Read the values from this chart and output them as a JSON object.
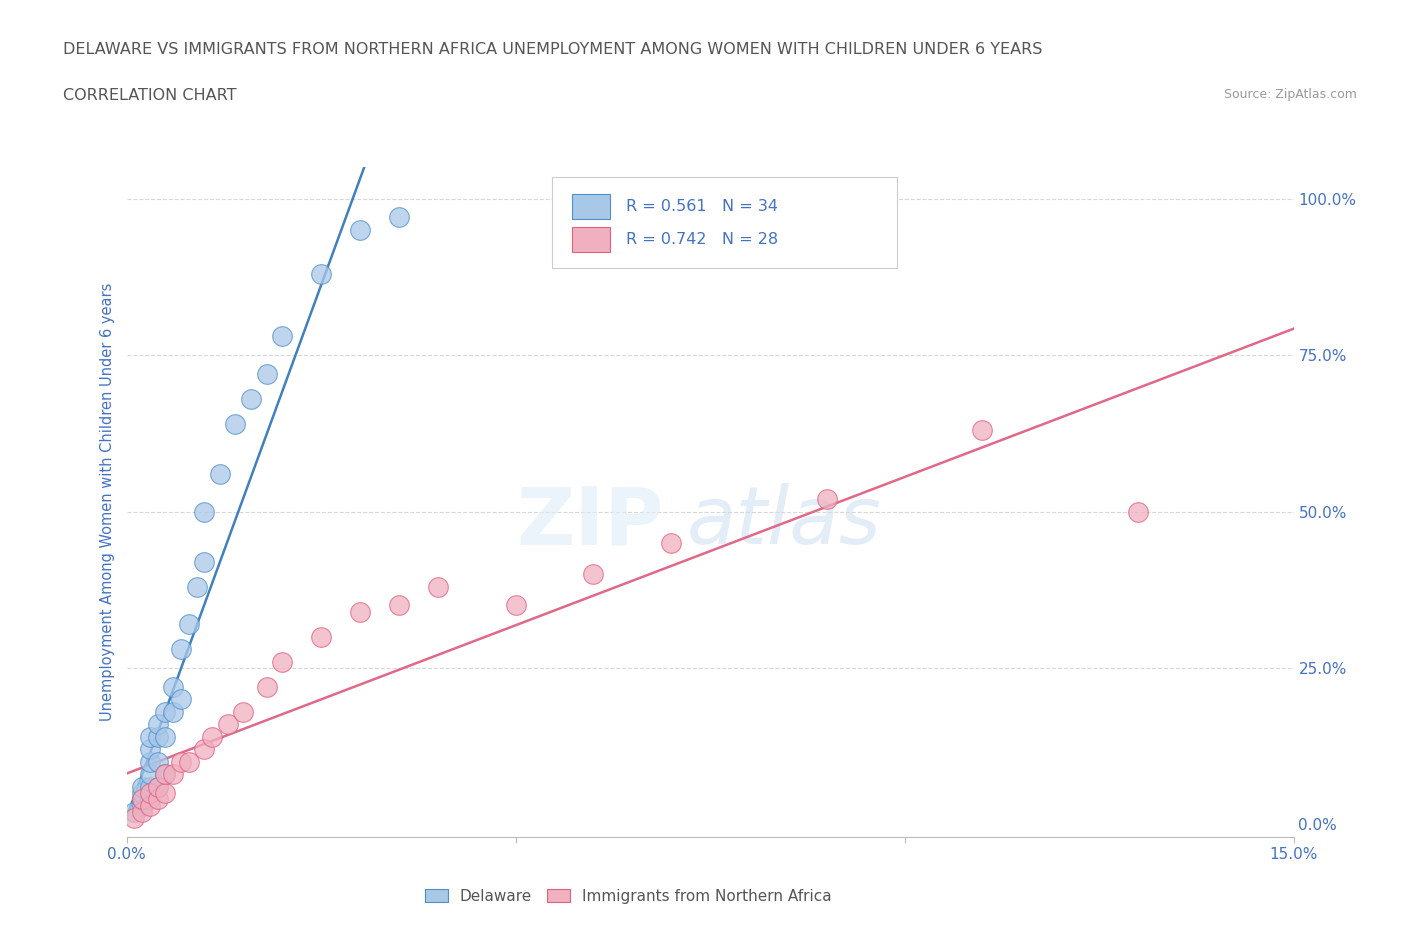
{
  "title_line1": "DELAWARE VS IMMIGRANTS FROM NORTHERN AFRICA UNEMPLOYMENT AMONG WOMEN WITH CHILDREN UNDER 6 YEARS",
  "title_line2": "CORRELATION CHART",
  "source_text": "Source: ZipAtlas.com",
  "ylabel": "Unemployment Among Women with Children Under 6 years",
  "watermark_zip": "ZIP",
  "watermark_atlas": "atlas",
  "xlim": [
    0.0,
    0.15
  ],
  "ylim": [
    -0.02,
    1.05
  ],
  "xtick_positions": [
    0.0,
    0.05,
    0.1,
    0.15
  ],
  "xtick_labels": [
    "0.0%",
    "",
    "",
    "15.0%"
  ],
  "ytick_positions": [
    0.0,
    0.25,
    0.5,
    0.75,
    1.0
  ],
  "ytick_labels_right": [
    "0.0%",
    "25.0%",
    "50.0%",
    "75.0%",
    "100.0%"
  ],
  "delaware_color": "#a8c8e8",
  "immigrants_color": "#f0b0c0",
  "delaware_edge_color": "#5090c8",
  "immigrants_edge_color": "#e06080",
  "delaware_line_color": "#4080c0",
  "immigrants_line_color": "#e06888",
  "axis_label_color": "#4472c4",
  "title_color": "#555555",
  "grid_color": "#d8d8d8",
  "background_color": "#ffffff",
  "legend_text_color": "#4472c4",
  "R_delaware": 0.561,
  "N_delaware": 34,
  "R_immigrants": 0.742,
  "N_immigrants": 28,
  "delaware_x": [
    0.001,
    0.002,
    0.002,
    0.002,
    0.002,
    0.003,
    0.003,
    0.003,
    0.003,
    0.003,
    0.003,
    0.004,
    0.004,
    0.004,
    0.004,
    0.005,
    0.005,
    0.005,
    0.006,
    0.006,
    0.007,
    0.007,
    0.008,
    0.009,
    0.01,
    0.01,
    0.012,
    0.014,
    0.016,
    0.018,
    0.02,
    0.025,
    0.03,
    0.035
  ],
  "delaware_y": [
    0.02,
    0.03,
    0.04,
    0.05,
    0.06,
    0.04,
    0.06,
    0.08,
    0.1,
    0.12,
    0.14,
    0.06,
    0.1,
    0.14,
    0.16,
    0.08,
    0.14,
    0.18,
    0.18,
    0.22,
    0.2,
    0.28,
    0.32,
    0.38,
    0.42,
    0.5,
    0.56,
    0.64,
    0.68,
    0.72,
    0.78,
    0.88,
    0.95,
    0.97
  ],
  "immigrants_x": [
    0.001,
    0.002,
    0.002,
    0.003,
    0.003,
    0.004,
    0.004,
    0.005,
    0.005,
    0.006,
    0.007,
    0.008,
    0.01,
    0.011,
    0.013,
    0.015,
    0.018,
    0.02,
    0.025,
    0.03,
    0.035,
    0.04,
    0.05,
    0.06,
    0.07,
    0.09,
    0.11,
    0.13
  ],
  "immigrants_y": [
    0.01,
    0.02,
    0.04,
    0.03,
    0.05,
    0.04,
    0.06,
    0.05,
    0.08,
    0.08,
    0.1,
    0.1,
    0.12,
    0.14,
    0.16,
    0.18,
    0.22,
    0.26,
    0.3,
    0.34,
    0.35,
    0.38,
    0.35,
    0.4,
    0.45,
    0.52,
    0.63,
    0.5
  ]
}
